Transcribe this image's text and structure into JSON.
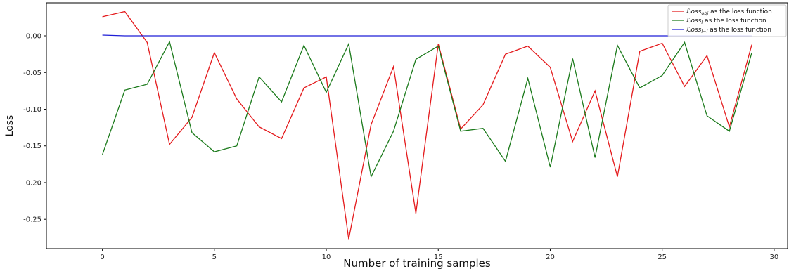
{
  "chart_data": {
    "type": "line",
    "title": "",
    "xlabel": "Number of training samples",
    "ylabel": "Loss",
    "xlim": [
      -2.5,
      30.6
    ],
    "ylim": [
      -0.29,
      0.045
    ],
    "xticks": [
      0,
      5,
      10,
      15,
      20,
      25,
      30
    ],
    "xtick_labels": [
      "0",
      "5",
      "10",
      "15",
      "20",
      "25",
      "30"
    ],
    "yticks": [
      0.0,
      -0.05,
      -0.1,
      -0.15,
      -0.2,
      -0.25
    ],
    "ytick_labels": [
      "0.00",
      "-0.05",
      "-0.10",
      "-0.15",
      "-0.20",
      "-0.25"
    ],
    "grid": false,
    "legend_position": "top-right",
    "x": [
      0,
      1,
      2,
      3,
      4,
      5,
      6,
      7,
      8,
      9,
      10,
      11,
      12,
      13,
      14,
      15,
      16,
      17,
      18,
      19,
      20,
      21,
      22,
      23,
      24,
      25,
      26,
      27,
      28,
      29
    ],
    "series": [
      {
        "name": "ℒoss_obj as the loss function",
        "legend_main": "ℒoss",
        "legend_sub": "obj",
        "legend_rest": " as the loss function",
        "color": "#e41a1c",
        "values": [
          0.026,
          0.033,
          -0.009,
          -0.148,
          -0.111,
          -0.023,
          -0.086,
          -0.124,
          -0.14,
          -0.071,
          -0.056,
          -0.277,
          -0.121,
          -0.042,
          -0.242,
          -0.011,
          -0.127,
          -0.094,
          -0.025,
          -0.014,
          -0.043,
          -0.144,
          -0.075,
          -0.192,
          -0.021,
          -0.01,
          -0.069,
          -0.027,
          -0.124,
          -0.012
        ]
      },
      {
        "name": "ℒoss_l as the loss function",
        "legend_main": "ℒoss",
        "legend_sub": "l",
        "legend_rest": " as the loss function",
        "color": "#1b7a1b",
        "values": [
          -0.162,
          -0.074,
          -0.066,
          -0.008,
          -0.132,
          -0.158,
          -0.15,
          -0.056,
          -0.09,
          -0.013,
          -0.077,
          -0.011,
          -0.192,
          -0.13,
          -0.032,
          -0.014,
          -0.13,
          -0.126,
          -0.171,
          -0.058,
          -0.179,
          -0.031,
          -0.166,
          -0.013,
          -0.071,
          -0.054,
          -0.009,
          -0.109,
          -0.13,
          -0.023
        ]
      },
      {
        "name": "ℒoss_l−i_r as the loss function",
        "legend_main": "ℒoss",
        "legend_sub": "l−i",
        "legend_rest": " as the loss function",
        "color": "#1f1fd6",
        "values": [
          0.001,
          0.0,
          0.0,
          0.0,
          0.0,
          0.0,
          0.0,
          0.0,
          0.0,
          0.0,
          0.0,
          0.0,
          0.0,
          0.0,
          0.0,
          0.0,
          0.0,
          0.0,
          0.0,
          0.0,
          0.0,
          0.0,
          0.0,
          0.0,
          0.0,
          0.0,
          0.0,
          0.0,
          0.0,
          0.0
        ]
      }
    ]
  }
}
